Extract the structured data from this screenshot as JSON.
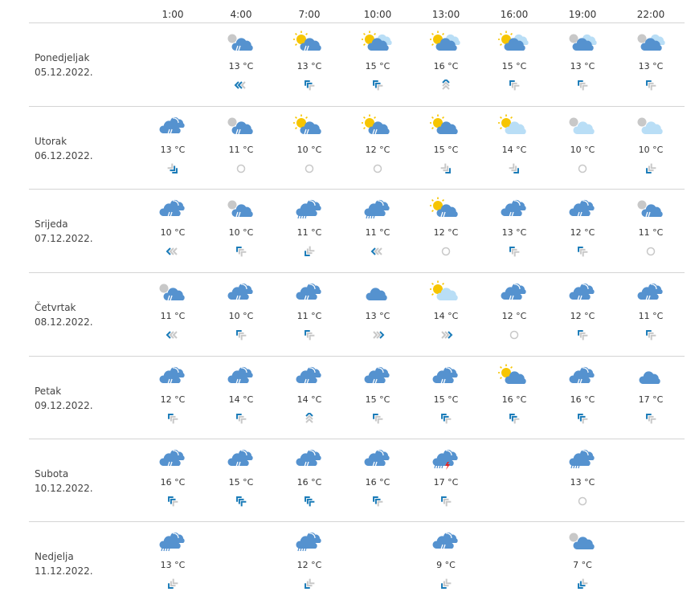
{
  "hours": [
    "1:00",
    "4:00",
    "7:00",
    "10:00",
    "13:00",
    "16:00",
    "19:00",
    "22:00"
  ],
  "colors": {
    "cloud": "#5592cf",
    "light_cloud": "#b9def6",
    "sun": "#f6c500",
    "moon": "#c8c8c8",
    "wind_active": "#1a7bb8",
    "wind_inactive": "#c8c8c8",
    "lightning": "#e8231e"
  },
  "days": [
    {
      "name": "Ponedjeljak",
      "date": "05.12.2022.",
      "cells": [
        null,
        {
          "icon": "night-cloud-rain",
          "temp": "13 °C",
          "wind": {
            "dir": "W",
            "level": 2
          }
        },
        {
          "icon": "sun-cloud-rain",
          "temp": "13 °C",
          "wind": {
            "dir": "NW",
            "level": 2
          }
        },
        {
          "icon": "sun-clouds",
          "temp": "15 °C",
          "wind": {
            "dir": "NW",
            "level": 2
          }
        },
        {
          "icon": "sun-clouds",
          "temp": "16 °C",
          "wind": {
            "dir": "N",
            "level": 1
          }
        },
        {
          "icon": "sun-clouds",
          "temp": "15 °C",
          "wind": {
            "dir": "NW",
            "level": 1
          }
        },
        {
          "icon": "night-clouds",
          "temp": "13 °C",
          "wind": {
            "dir": "NW",
            "level": 1
          }
        },
        {
          "icon": "night-clouds",
          "temp": "13 °C",
          "wind": {
            "dir": "NW",
            "level": 1
          }
        }
      ]
    },
    {
      "name": "Utorak",
      "date": "06.12.2022.",
      "cells": [
        {
          "icon": "clouds-rain",
          "temp": "13 °C",
          "wind": {
            "dir": "SE",
            "level": 2
          }
        },
        {
          "icon": "night-cloud-rain",
          "temp": "11 °C",
          "wind": {
            "dir": "calm",
            "level": 0
          }
        },
        {
          "icon": "sun-cloud-rain",
          "temp": "10 °C",
          "wind": {
            "dir": "calm",
            "level": 0
          }
        },
        {
          "icon": "sun-cloud-rain",
          "temp": "12 °C",
          "wind": {
            "dir": "calm",
            "level": 0
          }
        },
        {
          "icon": "sun-cloud",
          "temp": "15 °C",
          "wind": {
            "dir": "SE",
            "level": 1
          }
        },
        {
          "icon": "sun-light-cloud",
          "temp": "14 °C",
          "wind": {
            "dir": "SE",
            "level": 1
          }
        },
        {
          "icon": "night-light-cloud",
          "temp": "10 °C",
          "wind": {
            "dir": "calm",
            "level": 0
          }
        },
        {
          "icon": "night-light-cloud",
          "temp": "10 °C",
          "wind": {
            "dir": "SW",
            "level": 1
          }
        }
      ]
    },
    {
      "name": "Srijeda",
      "date": "07.12.2022.",
      "cells": [
        {
          "icon": "clouds-rain",
          "temp": "10 °C",
          "wind": {
            "dir": "W",
            "level": 1
          }
        },
        {
          "icon": "night-cloud-rain",
          "temp": "10 °C",
          "wind": {
            "dir": "NW",
            "level": 1
          }
        },
        {
          "icon": "clouds-heavy-rain",
          "temp": "11 °C",
          "wind": {
            "dir": "SW",
            "level": 1
          }
        },
        {
          "icon": "clouds-heavy-rain",
          "temp": "11 °C",
          "wind": {
            "dir": "W",
            "level": 1
          }
        },
        {
          "icon": "sun-cloud-rain",
          "temp": "12 °C",
          "wind": {
            "dir": "calm",
            "level": 0
          }
        },
        {
          "icon": "clouds-rain",
          "temp": "13 °C",
          "wind": {
            "dir": "NW",
            "level": 1
          }
        },
        {
          "icon": "clouds-rain",
          "temp": "12 °C",
          "wind": {
            "dir": "NW",
            "level": 1
          }
        },
        {
          "icon": "night-cloud-rain",
          "temp": "11 °C",
          "wind": {
            "dir": "calm",
            "level": 0
          }
        }
      ]
    },
    {
      "name": "Četvrtak",
      "date": "08.12.2022.",
      "cells": [
        {
          "icon": "night-cloud-rain",
          "temp": "11 °C",
          "wind": {
            "dir": "W",
            "level": 1
          }
        },
        {
          "icon": "clouds-rain",
          "temp": "10 °C",
          "wind": {
            "dir": "NW",
            "level": 1
          }
        },
        {
          "icon": "clouds-rain",
          "temp": "11 °C",
          "wind": {
            "dir": "NW",
            "level": 1
          }
        },
        {
          "icon": "cloud",
          "temp": "13 °C",
          "wind": {
            "dir": "E",
            "level": 1
          }
        },
        {
          "icon": "sun-light-cloud",
          "temp": "14 °C",
          "wind": {
            "dir": "E",
            "level": 1
          }
        },
        {
          "icon": "clouds-rain",
          "temp": "12 °C",
          "wind": {
            "dir": "calm",
            "level": 0
          }
        },
        {
          "icon": "clouds-rain",
          "temp": "12 °C",
          "wind": {
            "dir": "NW",
            "level": 1
          }
        },
        {
          "icon": "clouds-rain",
          "temp": "11 °C",
          "wind": {
            "dir": "NW",
            "level": 1
          }
        }
      ]
    },
    {
      "name": "Petak",
      "date": "09.12.2022.",
      "cells": [
        {
          "icon": "clouds-rain",
          "temp": "12 °C",
          "wind": {
            "dir": "NW",
            "level": 1
          }
        },
        {
          "icon": "clouds-rain",
          "temp": "14 °C",
          "wind": {
            "dir": "NW",
            "level": 1
          }
        },
        {
          "icon": "clouds-rain",
          "temp": "14 °C",
          "wind": {
            "dir": "N",
            "level": 1
          }
        },
        {
          "icon": "clouds-rain",
          "temp": "15 °C",
          "wind": {
            "dir": "NW",
            "level": 1
          }
        },
        {
          "icon": "clouds-rain",
          "temp": "15 °C",
          "wind": {
            "dir": "NW",
            "level": 2
          }
        },
        {
          "icon": "sun-cloud",
          "temp": "16 °C",
          "wind": {
            "dir": "NW",
            "level": 2
          }
        },
        {
          "icon": "clouds-rain",
          "temp": "16 °C",
          "wind": {
            "dir": "NW",
            "level": 2
          }
        },
        {
          "icon": "cloud",
          "temp": "17 °C",
          "wind": {
            "dir": "NW",
            "level": 1
          }
        }
      ]
    },
    {
      "name": "Subota",
      "date": "10.12.2022.",
      "cells": [
        {
          "icon": "clouds-rain",
          "temp": "16 °C",
          "wind": {
            "dir": "NW",
            "level": 2
          }
        },
        {
          "icon": "clouds-rain",
          "temp": "15 °C",
          "wind": {
            "dir": "NW",
            "level": 3
          }
        },
        {
          "icon": "clouds-rain",
          "temp": "16 °C",
          "wind": {
            "dir": "NW",
            "level": 3
          }
        },
        {
          "icon": "clouds-rain",
          "temp": "16 °C",
          "wind": {
            "dir": "NW",
            "level": 2
          }
        },
        {
          "icon": "clouds-thunderstorm",
          "temp": "17 °C",
          "wind": {
            "dir": "NW",
            "level": 1
          }
        },
        null,
        {
          "icon": "clouds-heavy-rain",
          "temp": "13 °C",
          "wind": {
            "dir": "calm",
            "level": 0
          }
        },
        null
      ]
    },
    {
      "name": "Nedjelja",
      "date": "11.12.2022.",
      "cells": [
        {
          "icon": "clouds-heavy-rain",
          "temp": "13 °C",
          "wind": {
            "dir": "SW",
            "level": 1
          }
        },
        null,
        {
          "icon": "clouds-heavy-rain",
          "temp": "12 °C",
          "wind": {
            "dir": "SW",
            "level": 1
          }
        },
        null,
        {
          "icon": "clouds-rain",
          "temp": "9 °C",
          "wind": {
            "dir": "SW",
            "level": 1
          }
        },
        null,
        {
          "icon": "night-cloud",
          "temp": "7 °C",
          "wind": {
            "dir": "SW",
            "level": 2
          }
        },
        null
      ]
    }
  ]
}
